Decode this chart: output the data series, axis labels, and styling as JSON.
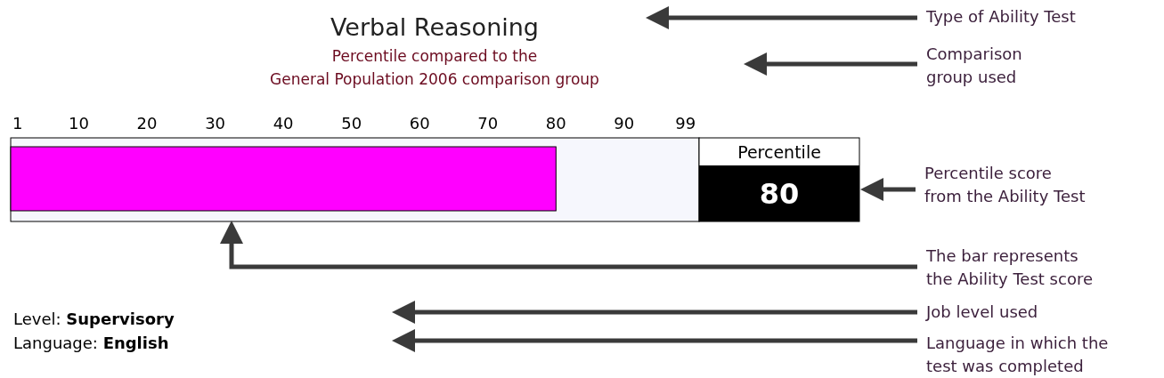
{
  "chart_data": {
    "type": "bar",
    "orientation": "horizontal",
    "title": "Verbal Reasoning",
    "subtitle": "Percentile compared to the\nGeneral Population 2006 comparison group",
    "categories": [
      null
    ],
    "values": [
      80
    ],
    "color": "#ff00ff",
    "xlim": [
      0,
      101
    ],
    "xticks": [
      1,
      10,
      20,
      30,
      40,
      50,
      60,
      70,
      80,
      90,
      99
    ],
    "annotations": [
      "Percentile",
      "80",
      "Type of Ability Test",
      "Comparison\ngroup used",
      "Percentile score\nfrom the Ability Test",
      "The bar represents\nthe Ability Test score",
      "Job level used",
      "Language in which the\ntest was completed",
      "Level: Supervisory",
      "Language: English"
    ]
  }
}
